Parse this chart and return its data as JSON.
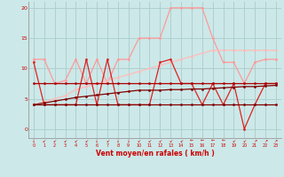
{
  "x": [
    0,
    1,
    2,
    3,
    4,
    5,
    6,
    7,
    8,
    9,
    10,
    11,
    12,
    13,
    14,
    15,
    16,
    17,
    18,
    19,
    20,
    21,
    22,
    23
  ],
  "line_dark_flat": [
    4,
    4,
    4,
    4,
    4,
    4,
    4,
    4,
    4,
    4,
    4,
    4,
    4,
    4,
    4,
    4,
    4,
    4,
    4,
    4,
    4,
    4,
    4,
    4
  ],
  "line_med_flat": [
    7.5,
    7.5,
    7.5,
    7.5,
    7.5,
    7.5,
    7.5,
    7.5,
    7.5,
    7.5,
    7.5,
    7.5,
    7.5,
    7.5,
    7.5,
    7.5,
    7.5,
    7.5,
    7.5,
    7.5,
    7.5,
    7.5,
    7.5,
    7.5
  ],
  "line_dark_slope": [
    4,
    4.3,
    4.6,
    4.9,
    5.2,
    5.4,
    5.6,
    5.8,
    6.0,
    6.2,
    6.4,
    6.4,
    6.4,
    6.5,
    6.5,
    6.6,
    6.6,
    6.7,
    6.8,
    6.9,
    7.0,
    7.0,
    7.1,
    7.2
  ],
  "line_pink_slope": [
    4,
    4.5,
    5,
    5.5,
    6.5,
    7,
    7.5,
    8,
    8.5,
    9,
    9.5,
    10,
    10.5,
    11,
    11.5,
    12,
    12.5,
    13,
    13,
    13,
    13,
    13,
    13,
    13
  ],
  "line_light_zigzag": [
    11.5,
    11.5,
    7.5,
    8,
    11.5,
    7.5,
    11.5,
    7.5,
    11.5,
    11.5,
    15,
    15,
    15,
    20,
    20,
    20,
    20,
    15,
    11,
    11,
    7.5,
    11,
    11.5,
    11.5
  ],
  "line_red_spike": [
    11,
    4,
    4,
    4,
    4,
    11.5,
    4,
    11.5,
    4,
    4,
    4,
    4,
    11,
    11.5,
    7.5,
    7.5,
    4,
    7.5,
    4,
    7.5,
    0,
    4,
    7.5,
    7.5
  ],
  "bg_color": "#cce8e8",
  "grid_color": "#aacccc",
  "color_very_dark": "#800000",
  "color_dark_red": "#aa0000",
  "color_mid_red": "#dd2222",
  "color_light_pink": "#ff9999",
  "color_pale_pink": "#ffbbbb",
  "xlabel": "Vent moyen/en rafales ( km/h )",
  "ylim": [
    -1.5,
    21
  ],
  "xlim": [
    -0.5,
    23.5
  ],
  "yticks": [
    0,
    5,
    10,
    15,
    20
  ],
  "xticks": [
    0,
    1,
    2,
    3,
    4,
    5,
    6,
    7,
    8,
    9,
    10,
    11,
    12,
    13,
    14,
    15,
    16,
    17,
    18,
    19,
    20,
    21,
    22,
    23
  ]
}
